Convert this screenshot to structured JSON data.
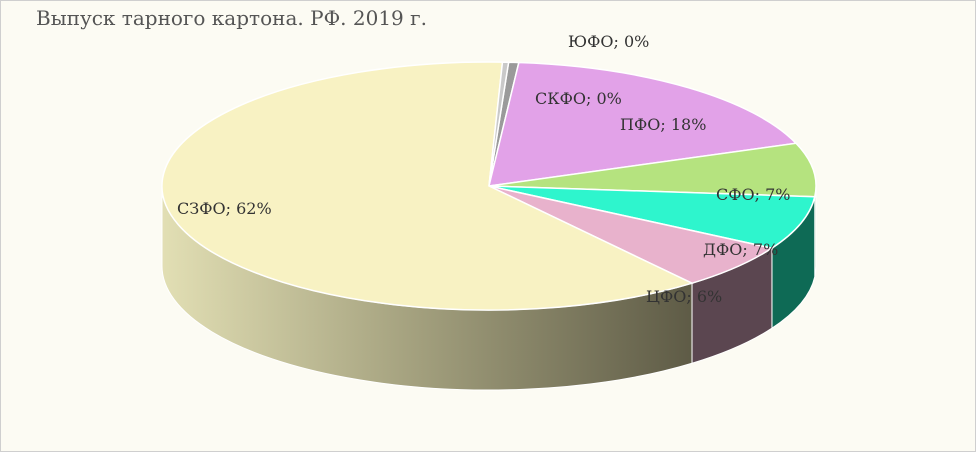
{
  "chart_data": {
    "type": "pie",
    "title": "Выпуск тарного картона. РФ. 2019 г.",
    "slices": [
      {
        "name": "ЮФО",
        "value": 0.5,
        "label": "ЮФО; 0%",
        "top": "#9a9a9a",
        "side": "#6e6e6e"
      },
      {
        "name": "ПФО",
        "value": 18,
        "label": "ПФО; 18%",
        "top": "#e2a2e8",
        "side": "#8a4f90"
      },
      {
        "name": "СФО",
        "value": 7,
        "label": "СФО; 7%",
        "top": "#b5e37f",
        "side": "#5f8a33"
      },
      {
        "name": "ДФО",
        "value": 7,
        "label": "ДФО; 7%",
        "top": "#2ef5cd",
        "side": "#0e6a55"
      },
      {
        "name": "ЦФО",
        "value": 6,
        "label": "ЦФО; 6%",
        "top": "#e8b2cc",
        "side": "#5b4650"
      },
      {
        "name": "СЗФО",
        "value": 61.5,
        "label": "СЗФО; 62%",
        "top": "#f8f2c3",
        "side": "#9b9775"
      },
      {
        "name": "СКФО",
        "value": 0.3,
        "label": "СКФО; 0%",
        "top": "#c9c9c9",
        "side": "#8f8f8f"
      }
    ]
  }
}
